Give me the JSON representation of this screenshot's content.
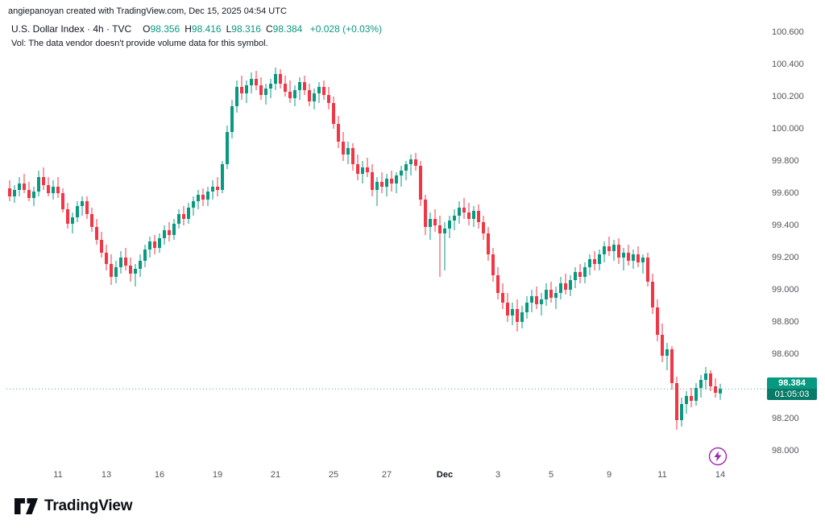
{
  "attribution": "angiepanoyan created with TradingView.com, Dec 15, 2025 04:54 UTC",
  "legend": {
    "symbol_title": "U.S. Dollar Index · 4h · TVC",
    "ohlc": {
      "o_label": "O",
      "o": "98.356",
      "h_label": "H",
      "h": "98.416",
      "l_label": "L",
      "l": "98.316",
      "c_label": "C",
      "c": "98.384",
      "change": "+0.028 (+0.03%)"
    },
    "vol_note": "Vol: The data vendor doesn't provide volume data for this symbol."
  },
  "price_badge": {
    "price": "98.384",
    "countdown": "01:05:03"
  },
  "logo_text": "TradingView",
  "colors": {
    "up": "#089981",
    "down": "#f23645",
    "text": "#131722",
    "axis_text": "#51555e",
    "badge_bg": "#089981",
    "badge_countdown_bg": "#077a68",
    "accent_purple": "#9c27b0"
  },
  "chart_data": {
    "type": "candlestick",
    "title": "U.S. Dollar Index",
    "interval": "4h",
    "exchange": "TVC",
    "current": {
      "open": 98.356,
      "high": 98.416,
      "low": 98.316,
      "close": 98.384,
      "change": 0.028,
      "change_pct": 0.03
    },
    "price_range": [
      98.0,
      100.6
    ],
    "price_axis_labels": [
      "100.600",
      "100.400",
      "100.200",
      "100.000",
      "99.800",
      "99.600",
      "99.400",
      "99.200",
      "99.000",
      "98.800",
      "98.600",
      "98.200",
      "98.000"
    ],
    "time_axis": [
      {
        "label": "11",
        "i": 10
      },
      {
        "label": "13",
        "i": 20
      },
      {
        "label": "16",
        "i": 31
      },
      {
        "label": "19",
        "i": 43
      },
      {
        "label": "21",
        "i": 55
      },
      {
        "label": "25",
        "i": 67
      },
      {
        "label": "27",
        "i": 78
      },
      {
        "label": "Dec",
        "i": 90,
        "major": true
      },
      {
        "label": "3",
        "i": 101
      },
      {
        "label": "5",
        "i": 112
      },
      {
        "label": "9",
        "i": 124
      },
      {
        "label": "11",
        "i": 135
      },
      {
        "label": "14",
        "i": 147
      }
    ],
    "candles": [
      [
        99.63,
        99.68,
        99.55,
        99.58
      ],
      [
        99.58,
        99.65,
        99.54,
        99.62
      ],
      [
        99.62,
        99.7,
        99.58,
        99.66
      ],
      [
        99.66,
        99.72,
        99.6,
        99.62
      ],
      [
        99.62,
        99.67,
        99.55,
        99.57
      ],
      [
        99.57,
        99.64,
        99.52,
        99.61
      ],
      [
        99.61,
        99.74,
        99.58,
        99.7
      ],
      [
        99.7,
        99.76,
        99.62,
        99.65
      ],
      [
        99.65,
        99.7,
        99.58,
        99.6
      ],
      [
        99.6,
        99.68,
        99.56,
        99.64
      ],
      [
        99.64,
        99.7,
        99.57,
        99.6
      ],
      [
        99.6,
        99.63,
        99.48,
        99.5
      ],
      [
        99.5,
        99.54,
        99.38,
        99.41
      ],
      [
        99.41,
        99.48,
        99.35,
        99.45
      ],
      [
        99.45,
        99.55,
        99.42,
        99.52
      ],
      [
        99.52,
        99.58,
        99.46,
        99.55
      ],
      [
        99.55,
        99.58,
        99.44,
        99.47
      ],
      [
        99.47,
        99.51,
        99.36,
        99.39
      ],
      [
        99.39,
        99.44,
        99.28,
        99.31
      ],
      [
        99.31,
        99.36,
        99.2,
        99.23
      ],
      [
        99.23,
        99.28,
        99.12,
        99.16
      ],
      [
        99.16,
        99.22,
        99.03,
        99.08
      ],
      [
        99.08,
        99.18,
        99.04,
        99.14
      ],
      [
        99.14,
        99.24,
        99.1,
        99.2
      ],
      [
        99.2,
        99.26,
        99.12,
        99.15
      ],
      [
        99.15,
        99.2,
        99.05,
        99.1
      ],
      [
        99.1,
        99.16,
        99.02,
        99.13
      ],
      [
        99.13,
        99.22,
        99.08,
        99.18
      ],
      [
        99.18,
        99.28,
        99.14,
        99.25
      ],
      [
        99.25,
        99.33,
        99.2,
        99.3
      ],
      [
        99.3,
        99.34,
        99.22,
        99.26
      ],
      [
        99.26,
        99.35,
        99.23,
        99.32
      ],
      [
        99.32,
        99.4,
        99.28,
        99.37
      ],
      [
        99.37,
        99.42,
        99.3,
        99.34
      ],
      [
        99.34,
        99.44,
        99.31,
        99.41
      ],
      [
        99.41,
        99.5,
        99.38,
        99.47
      ],
      [
        99.47,
        99.52,
        99.4,
        99.44
      ],
      [
        99.44,
        99.54,
        99.41,
        99.51
      ],
      [
        99.51,
        99.58,
        99.46,
        99.55
      ],
      [
        99.55,
        99.62,
        99.5,
        99.59
      ],
      [
        99.59,
        99.63,
        99.52,
        99.56
      ],
      [
        99.56,
        99.64,
        99.52,
        99.61
      ],
      [
        99.61,
        99.68,
        99.56,
        99.64
      ],
      [
        99.64,
        99.7,
        99.58,
        99.62
      ],
      [
        99.62,
        99.8,
        99.6,
        99.78
      ],
      [
        99.78,
        100.02,
        99.75,
        99.98
      ],
      [
        99.98,
        100.18,
        99.94,
        100.14
      ],
      [
        100.14,
        100.3,
        100.1,
        100.26
      ],
      [
        100.26,
        100.33,
        100.18,
        100.22
      ],
      [
        100.22,
        100.3,
        100.16,
        100.27
      ],
      [
        100.27,
        100.35,
        100.22,
        100.31
      ],
      [
        100.31,
        100.36,
        100.24,
        100.27
      ],
      [
        100.27,
        100.32,
        100.18,
        100.21
      ],
      [
        100.21,
        100.28,
        100.15,
        100.25
      ],
      [
        100.25,
        100.31,
        100.19,
        100.28
      ],
      [
        100.28,
        100.38,
        100.24,
        100.34
      ],
      [
        100.34,
        100.37,
        100.25,
        100.28
      ],
      [
        100.28,
        100.33,
        100.2,
        100.23
      ],
      [
        100.23,
        100.3,
        100.16,
        100.19
      ],
      [
        100.19,
        100.27,
        100.14,
        100.24
      ],
      [
        100.24,
        100.32,
        100.18,
        100.29
      ],
      [
        100.29,
        100.33,
        100.21,
        100.24
      ],
      [
        100.24,
        100.28,
        100.14,
        100.17
      ],
      [
        100.17,
        100.25,
        100.12,
        100.22
      ],
      [
        100.22,
        100.29,
        100.16,
        100.26
      ],
      [
        100.26,
        100.3,
        100.18,
        100.21
      ],
      [
        100.21,
        100.26,
        100.12,
        100.16
      ],
      [
        100.16,
        100.2,
        100.0,
        100.03
      ],
      [
        100.03,
        100.08,
        99.88,
        99.92
      ],
      [
        99.92,
        99.98,
        99.8,
        99.84
      ],
      [
        99.84,
        99.92,
        99.78,
        99.88
      ],
      [
        99.88,
        99.91,
        99.74,
        99.78
      ],
      [
        99.78,
        99.84,
        99.68,
        99.72
      ],
      [
        99.72,
        99.8,
        99.66,
        99.76
      ],
      [
        99.76,
        99.82,
        99.7,
        99.73
      ],
      [
        99.73,
        99.78,
        99.58,
        99.62
      ],
      [
        99.62,
        99.7,
        99.52,
        99.67
      ],
      [
        99.67,
        99.73,
        99.6,
        99.64
      ],
      [
        99.64,
        99.72,
        99.58,
        99.69
      ],
      [
        99.69,
        99.74,
        99.61,
        99.66
      ],
      [
        99.66,
        99.73,
        99.6,
        99.71
      ],
      [
        99.71,
        99.77,
        99.64,
        99.74
      ],
      [
        99.74,
        99.8,
        99.68,
        99.78
      ],
      [
        99.78,
        99.84,
        99.71,
        99.81
      ],
      [
        99.81,
        99.85,
        99.74,
        99.77
      ],
      [
        99.77,
        99.8,
        99.52,
        99.56
      ],
      [
        99.56,
        99.59,
        99.34,
        99.39
      ],
      [
        99.39,
        99.48,
        99.31,
        99.44
      ],
      [
        99.44,
        99.5,
        99.36,
        99.4
      ],
      [
        99.4,
        99.46,
        99.08,
        99.35
      ],
      [
        99.35,
        99.42,
        99.12,
        99.38
      ],
      [
        99.38,
        99.46,
        99.32,
        99.43
      ],
      [
        99.43,
        99.5,
        99.37,
        99.46
      ],
      [
        99.46,
        99.55,
        99.41,
        99.51
      ],
      [
        99.51,
        99.57,
        99.44,
        99.48
      ],
      [
        99.48,
        99.54,
        99.4,
        99.44
      ],
      [
        99.44,
        99.52,
        99.39,
        99.49
      ],
      [
        99.49,
        99.53,
        99.38,
        99.42
      ],
      [
        99.42,
        99.46,
        99.31,
        99.35
      ],
      [
        99.35,
        99.39,
        99.18,
        99.22
      ],
      [
        99.22,
        99.26,
        99.05,
        99.09
      ],
      [
        99.09,
        99.14,
        98.94,
        98.98
      ],
      [
        98.98,
        99.04,
        98.88,
        98.92
      ],
      [
        98.92,
        98.98,
        98.8,
        98.84
      ],
      [
        98.84,
        98.92,
        98.78,
        98.88
      ],
      [
        98.88,
        98.94,
        98.74,
        98.8
      ],
      [
        98.8,
        98.9,
        98.76,
        98.86
      ],
      [
        98.86,
        98.96,
        98.82,
        98.92
      ],
      [
        98.92,
        99.0,
        98.86,
        98.96
      ],
      [
        98.96,
        99.02,
        98.88,
        98.91
      ],
      [
        98.91,
        98.98,
        98.84,
        98.94
      ],
      [
        98.94,
        99.04,
        98.9,
        99.0
      ],
      [
        99.0,
        99.05,
        98.92,
        98.95
      ],
      [
        98.95,
        99.02,
        98.88,
        98.98
      ],
      [
        98.98,
        99.08,
        98.94,
        99.04
      ],
      [
        99.04,
        99.1,
        98.97,
        99.0
      ],
      [
        99.0,
        99.09,
        98.96,
        99.06
      ],
      [
        99.06,
        99.14,
        99.01,
        99.11
      ],
      [
        99.11,
        99.16,
        99.04,
        99.08
      ],
      [
        99.08,
        99.17,
        99.04,
        99.14
      ],
      [
        99.14,
        99.22,
        99.09,
        99.19
      ],
      [
        99.19,
        99.24,
        99.12,
        99.16
      ],
      [
        99.16,
        99.25,
        99.12,
        99.22
      ],
      [
        99.22,
        99.3,
        99.17,
        99.27
      ],
      [
        99.27,
        99.33,
        99.21,
        99.24
      ],
      [
        99.24,
        99.31,
        99.18,
        99.28
      ],
      [
        99.28,
        99.32,
        99.16,
        99.2
      ],
      [
        99.2,
        99.26,
        99.12,
        99.23
      ],
      [
        99.23,
        99.28,
        99.15,
        99.18
      ],
      [
        99.18,
        99.25,
        99.13,
        99.22
      ],
      [
        99.22,
        99.27,
        99.14,
        99.17
      ],
      [
        99.17,
        99.22,
        99.1,
        99.2
      ],
      [
        99.2,
        99.23,
        99.02,
        99.05
      ],
      [
        99.05,
        99.1,
        98.85,
        98.89
      ],
      [
        98.89,
        98.94,
        98.68,
        98.72
      ],
      [
        98.72,
        98.79,
        98.55,
        98.59
      ],
      [
        98.59,
        98.67,
        98.5,
        98.63
      ],
      [
        98.63,
        98.65,
        98.38,
        98.42
      ],
      [
        98.42,
        98.46,
        98.13,
        98.19
      ],
      [
        98.19,
        98.33,
        98.15,
        98.29
      ],
      [
        98.29,
        98.37,
        98.23,
        98.34
      ],
      [
        98.34,
        98.39,
        98.27,
        98.31
      ],
      [
        98.31,
        98.42,
        98.28,
        98.39
      ],
      [
        98.39,
        98.47,
        98.33,
        98.44
      ],
      [
        98.44,
        98.52,
        98.38,
        98.48
      ],
      [
        98.48,
        98.5,
        98.37,
        98.4
      ],
      [
        98.4,
        98.45,
        98.33,
        98.36
      ],
      [
        98.356,
        98.416,
        98.316,
        98.384
      ]
    ]
  }
}
